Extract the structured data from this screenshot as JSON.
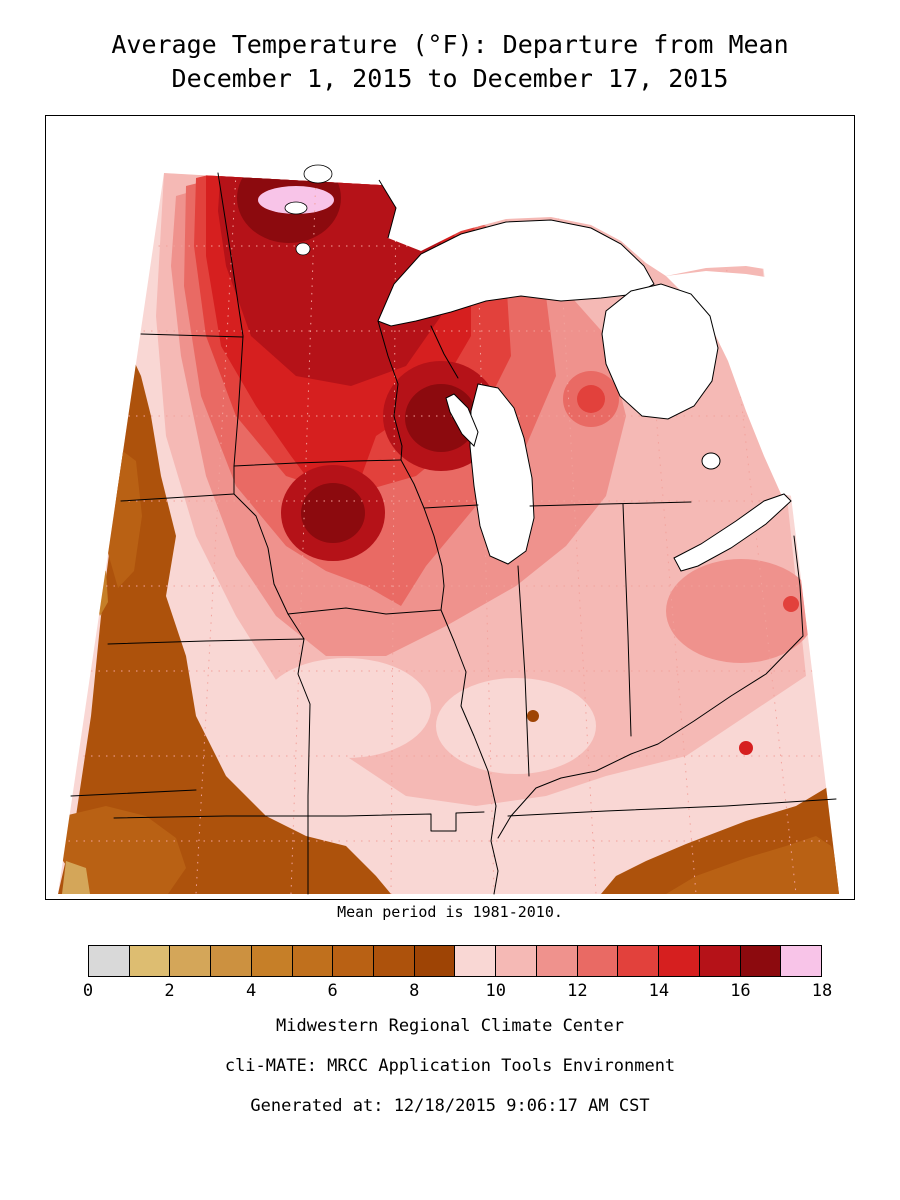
{
  "title": {
    "line1": "Average Temperature (°F): Departure from Mean",
    "line2": "December 1, 2015 to December 17, 2015"
  },
  "map": {
    "caption": "Mean period is 1981-2010."
  },
  "colorbar": {
    "tick_labels": [
      "0",
      "2",
      "4",
      "6",
      "8",
      "10",
      "12",
      "14",
      "16",
      "18"
    ],
    "segment_colors": [
      "#d9d9d9",
      "#ddbd71",
      "#d4a659",
      "#cc9140",
      "#c67f28",
      "#c0701d",
      "#b96114",
      "#ad520c",
      "#9e4405",
      "#f9d7d4",
      "#f5b9b5",
      "#ef928d",
      "#e96a64",
      "#e2413c",
      "#d61f1f",
      "#b51218",
      "#8c0a0e",
      "#f8c4e8"
    ]
  },
  "footer": {
    "line1": "Midwestern Regional Climate Center",
    "line2": "cli-MATE: MRCC Application Tools Environment",
    "line3": "Generated at: 12/18/2015 9:06:17 AM CST"
  }
}
